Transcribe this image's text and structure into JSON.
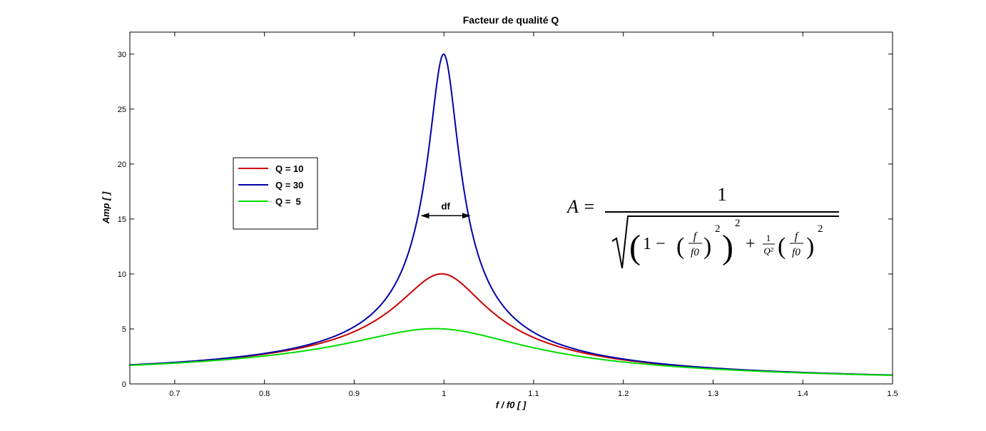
{
  "chart_data": {
    "type": "line",
    "title": "Facteur de qualité Q",
    "xlabel": "f / f0 [ ]",
    "ylabel": "Amp [ ]",
    "xlim": [
      0.65,
      1.5
    ],
    "ylim": [
      0,
      32
    ],
    "xticks": [
      0.7,
      0.8,
      0.9,
      1,
      1.1,
      1.2,
      1.3,
      1.4,
      1.5
    ],
    "yticks": [
      0,
      5,
      10,
      15,
      20,
      25,
      30
    ],
    "grid": false,
    "legend_placement": "middle-left",
    "series": [
      {
        "name": "Q = 10",
        "Q": 10,
        "color": "#cc0000"
      },
      {
        "name": "Q = 30",
        "Q": 30,
        "color": "#0000aa"
      },
      {
        "name": "Q =  5",
        "Q": 5,
        "color": "#00dd00"
      }
    ],
    "annotation": {
      "text": "df",
      "x_start": 0.974,
      "x_end": 1.03,
      "y": 15.3
    },
    "formula": {
      "lhs": "A =",
      "numerator": "1",
      "term_one": "1 −",
      "f": "f",
      "f0": "f0",
      "Q2_num": "1",
      "Q2_den": "Q²",
      "power": "2",
      "plus": "+"
    }
  }
}
